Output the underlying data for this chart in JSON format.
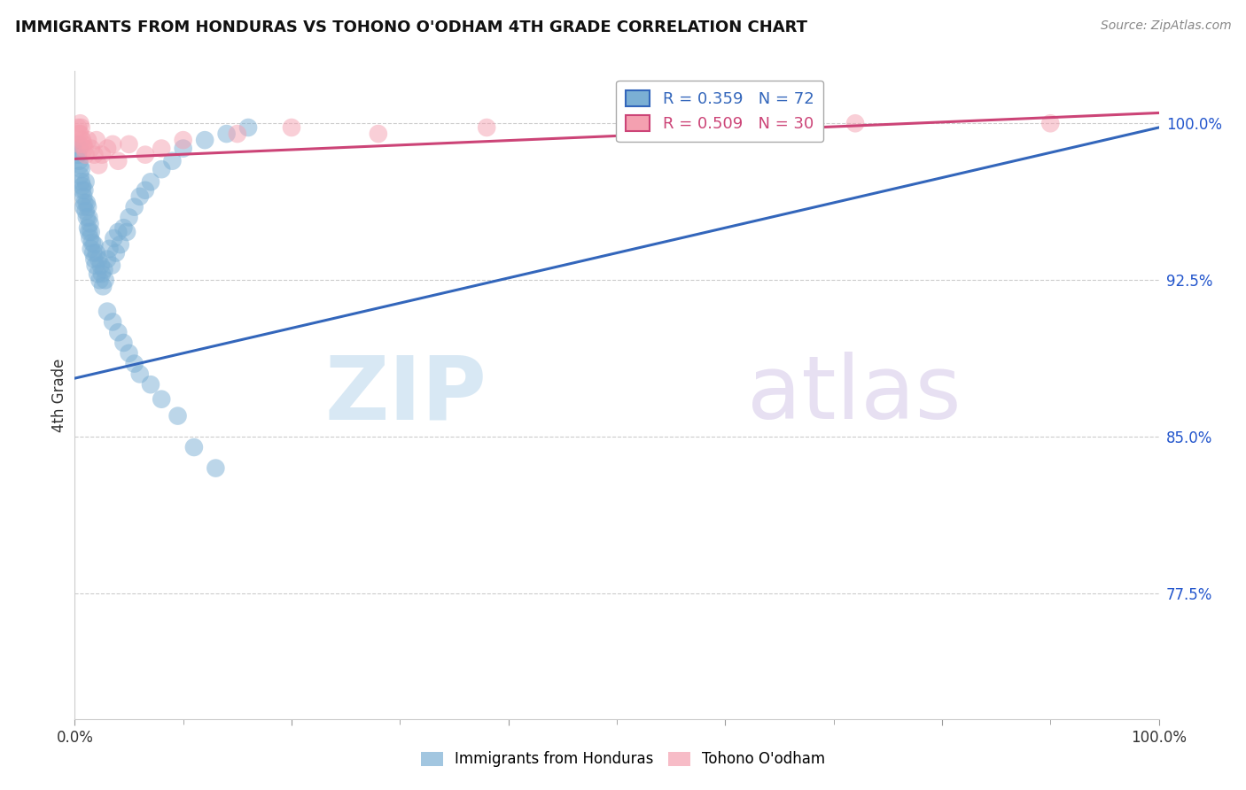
{
  "title": "IMMIGRANTS FROM HONDURAS VS TOHONO O'ODHAM 4TH GRADE CORRELATION CHART",
  "source": "Source: ZipAtlas.com",
  "ylabel": "4th Grade",
  "ytick_labels": [
    "100.0%",
    "92.5%",
    "85.0%",
    "77.5%"
  ],
  "ytick_values": [
    1.0,
    0.925,
    0.85,
    0.775
  ],
  "xlim": [
    0.0,
    1.0
  ],
  "ylim": [
    0.715,
    1.025
  ],
  "legend1_label": "Immigrants from Honduras",
  "legend2_label": "Tohono O'odham",
  "R_blue": 0.359,
  "N_blue": 72,
  "R_pink": 0.509,
  "N_pink": 30,
  "blue_color": "#7BAFD4",
  "pink_color": "#F4A0B0",
  "blue_line_color": "#3366BB",
  "pink_line_color": "#CC4477",
  "watermark_zip": "ZIP",
  "watermark_atlas": "atlas",
  "blue_scatter_x": [
    0.002,
    0.003,
    0.004,
    0.004,
    0.005,
    0.005,
    0.006,
    0.006,
    0.007,
    0.007,
    0.008,
    0.008,
    0.009,
    0.009,
    0.01,
    0.01,
    0.011,
    0.011,
    0.012,
    0.012,
    0.013,
    0.013,
    0.014,
    0.014,
    0.015,
    0.015,
    0.016,
    0.017,
    0.018,
    0.018,
    0.019,
    0.02,
    0.021,
    0.022,
    0.023,
    0.024,
    0.025,
    0.026,
    0.027,
    0.028,
    0.03,
    0.032,
    0.034,
    0.036,
    0.038,
    0.04,
    0.042,
    0.045,
    0.048,
    0.05,
    0.055,
    0.06,
    0.065,
    0.07,
    0.08,
    0.09,
    0.1,
    0.12,
    0.14,
    0.16,
    0.03,
    0.035,
    0.04,
    0.045,
    0.05,
    0.055,
    0.06,
    0.07,
    0.08,
    0.095,
    0.11,
    0.13
  ],
  "blue_scatter_y": [
    0.99,
    0.985,
    0.988,
    0.982,
    0.98,
    0.975,
    0.978,
    0.972,
    0.97,
    0.968,
    0.965,
    0.96,
    0.968,
    0.962,
    0.958,
    0.972,
    0.955,
    0.962,
    0.95,
    0.96,
    0.955,
    0.948,
    0.952,
    0.945,
    0.948,
    0.94,
    0.943,
    0.938,
    0.935,
    0.942,
    0.932,
    0.938,
    0.928,
    0.935,
    0.925,
    0.932,
    0.928,
    0.922,
    0.93,
    0.925,
    0.935,
    0.94,
    0.932,
    0.945,
    0.938,
    0.948,
    0.942,
    0.95,
    0.948,
    0.955,
    0.96,
    0.965,
    0.968,
    0.972,
    0.978,
    0.982,
    0.988,
    0.992,
    0.995,
    0.998,
    0.91,
    0.905,
    0.9,
    0.895,
    0.89,
    0.885,
    0.88,
    0.875,
    0.868,
    0.86,
    0.845,
    0.835
  ],
  "pink_scatter_x": [
    0.003,
    0.004,
    0.004,
    0.005,
    0.005,
    0.006,
    0.007,
    0.008,
    0.009,
    0.01,
    0.012,
    0.015,
    0.018,
    0.02,
    0.022,
    0.025,
    0.03,
    0.035,
    0.04,
    0.05,
    0.065,
    0.08,
    0.1,
    0.15,
    0.2,
    0.28,
    0.38,
    0.52,
    0.72,
    0.9
  ],
  "pink_scatter_y": [
    0.998,
    0.995,
    0.99,
    1.0,
    0.995,
    0.998,
    0.992,
    0.99,
    0.988,
    0.985,
    0.992,
    0.988,
    0.985,
    0.992,
    0.98,
    0.985,
    0.988,
    0.99,
    0.982,
    0.99,
    0.985,
    0.988,
    0.992,
    0.995,
    0.998,
    0.995,
    0.998,
    0.998,
    1.0,
    1.0
  ],
  "blue_line_x0": 0.0,
  "blue_line_y0": 0.878,
  "blue_line_x1": 1.0,
  "blue_line_y1": 0.998,
  "pink_line_x0": 0.0,
  "pink_line_y0": 0.983,
  "pink_line_x1": 1.0,
  "pink_line_y1": 1.005
}
